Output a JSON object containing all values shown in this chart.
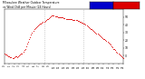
{
  "title_line1": "Milwaukee Weather Outdoor Temperature",
  "title_line2": "vs Wind Chill per Minute (24 Hours)",
  "bg_color": "#ffffff",
  "plot_bg_color": "#ffffff",
  "temp_color": "#dd0000",
  "wind_chill_color": "#0000cc",
  "ylim": [
    -10,
    60
  ],
  "yticks": [
    0,
    10,
    20,
    30,
    40,
    50
  ],
  "xlim": [
    0,
    1440
  ],
  "vline_color": "#aaaaaa",
  "vlines": [
    480,
    960
  ],
  "temp_data": [
    [
      0,
      2
    ],
    [
      12,
      1
    ],
    [
      24,
      1
    ],
    [
      36,
      0
    ],
    [
      48,
      -1
    ],
    [
      60,
      -1
    ],
    [
      72,
      -2
    ],
    [
      84,
      -2
    ],
    [
      96,
      -3
    ],
    [
      108,
      -3
    ],
    [
      120,
      -2
    ],
    [
      132,
      -1
    ],
    [
      144,
      -1
    ],
    [
      156,
      -2
    ],
    [
      168,
      -1
    ],
    [
      180,
      0
    ],
    [
      192,
      1
    ],
    [
      204,
      2
    ],
    [
      216,
      3
    ],
    [
      228,
      5
    ],
    [
      240,
      7
    ],
    [
      252,
      9
    ],
    [
      264,
      12
    ],
    [
      276,
      15
    ],
    [
      288,
      18
    ],
    [
      300,
      21
    ],
    [
      312,
      24
    ],
    [
      324,
      27
    ],
    [
      336,
      30
    ],
    [
      348,
      32
    ],
    [
      360,
      34
    ],
    [
      372,
      36
    ],
    [
      384,
      37
    ],
    [
      396,
      38
    ],
    [
      408,
      39
    ],
    [
      420,
      40
    ],
    [
      432,
      41
    ],
    [
      444,
      42
    ],
    [
      456,
      43
    ],
    [
      468,
      44
    ],
    [
      480,
      44
    ],
    [
      492,
      45
    ],
    [
      504,
      46
    ],
    [
      516,
      47
    ],
    [
      528,
      48
    ],
    [
      540,
      49
    ],
    [
      552,
      50
    ],
    [
      564,
      51
    ],
    [
      576,
      52
    ],
    [
      588,
      52
    ],
    [
      600,
      52
    ],
    [
      612,
      51
    ],
    [
      624,
      51
    ],
    [
      636,
      51
    ],
    [
      648,
      50
    ],
    [
      660,
      50
    ],
    [
      672,
      50
    ],
    [
      684,
      50
    ],
    [
      696,
      50
    ],
    [
      708,
      50
    ],
    [
      720,
      49
    ],
    [
      732,
      49
    ],
    [
      744,
      48
    ],
    [
      756,
      48
    ],
    [
      768,
      48
    ],
    [
      780,
      48
    ],
    [
      792,
      47
    ],
    [
      804,
      47
    ],
    [
      816,
      47
    ],
    [
      828,
      46
    ],
    [
      840,
      46
    ],
    [
      852,
      46
    ],
    [
      864,
      46
    ],
    [
      876,
      46
    ],
    [
      888,
      45
    ],
    [
      900,
      45
    ],
    [
      912,
      44
    ],
    [
      924,
      44
    ],
    [
      936,
      43
    ],
    [
      948,
      43
    ],
    [
      960,
      42
    ],
    [
      972,
      41
    ],
    [
      984,
      40
    ],
    [
      996,
      39
    ],
    [
      1008,
      38
    ],
    [
      1020,
      37
    ],
    [
      1032,
      36
    ],
    [
      1044,
      35
    ],
    [
      1056,
      34
    ],
    [
      1068,
      33
    ],
    [
      1080,
      32
    ],
    [
      1092,
      31
    ],
    [
      1104,
      30
    ],
    [
      1116,
      29
    ],
    [
      1128,
      28
    ],
    [
      1140,
      27
    ],
    [
      1152,
      26
    ],
    [
      1164,
      25
    ],
    [
      1176,
      24
    ],
    [
      1188,
      23
    ],
    [
      1200,
      22
    ],
    [
      1212,
      21
    ],
    [
      1224,
      20
    ],
    [
      1236,
      19
    ],
    [
      1248,
      18
    ],
    [
      1260,
      17
    ],
    [
      1272,
      15
    ],
    [
      1284,
      14
    ],
    [
      1296,
      12
    ],
    [
      1308,
      11
    ],
    [
      1320,
      9
    ],
    [
      1332,
      8
    ],
    [
      1344,
      7
    ],
    [
      1356,
      5
    ],
    [
      1368,
      4
    ],
    [
      1380,
      3
    ],
    [
      1392,
      1
    ],
    [
      1404,
      0
    ],
    [
      1416,
      -1
    ],
    [
      1428,
      -2
    ],
    [
      1440,
      -3
    ]
  ]
}
